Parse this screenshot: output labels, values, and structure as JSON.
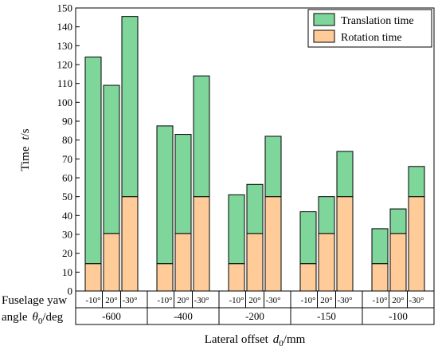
{
  "chart_data": {
    "type": "bar",
    "stacked": true,
    "ylabel_main": "Time",
    "ylabel_var": "t",
    "ylabel_unit": "/s",
    "xlabel_main": "Lateral offset",
    "xlabel_var": "d",
    "xlabel_sub": "0",
    "xlabel_unit": "/mm",
    "row_label_line1": "Fuselage yaw",
    "row_label_line2_pre": "angle",
    "row_label_var": "θ",
    "row_label_sub": "0",
    "row_label_unit": "/deg",
    "ylim": [
      0,
      150
    ],
    "y_ticks": [
      0,
      10,
      20,
      30,
      40,
      50,
      60,
      70,
      80,
      90,
      100,
      110,
      120,
      130,
      140,
      150
    ],
    "groups": [
      "-600",
      "-400",
      "-200",
      "-150",
      "-100"
    ],
    "angles": [
      "-10°",
      "20°",
      "-30°"
    ],
    "legend_position": "top-right",
    "series": [
      {
        "name": "Rotation time",
        "color": "#ffcc99",
        "values": [
          14.5,
          30.5,
          50,
          14.5,
          30.5,
          50,
          14.5,
          30.5,
          50,
          14.5,
          30.5,
          50,
          14.5,
          30.5,
          50
        ]
      },
      {
        "name": "Translation time",
        "color": "#7fd69b",
        "values": [
          109.5,
          78.5,
          95.5,
          73,
          52.5,
          64,
          36.5,
          26,
          32,
          27.5,
          19.5,
          24,
          18.5,
          13,
          16
        ]
      }
    ],
    "legend": [
      "Translation time",
      "Rotation time"
    ]
  }
}
